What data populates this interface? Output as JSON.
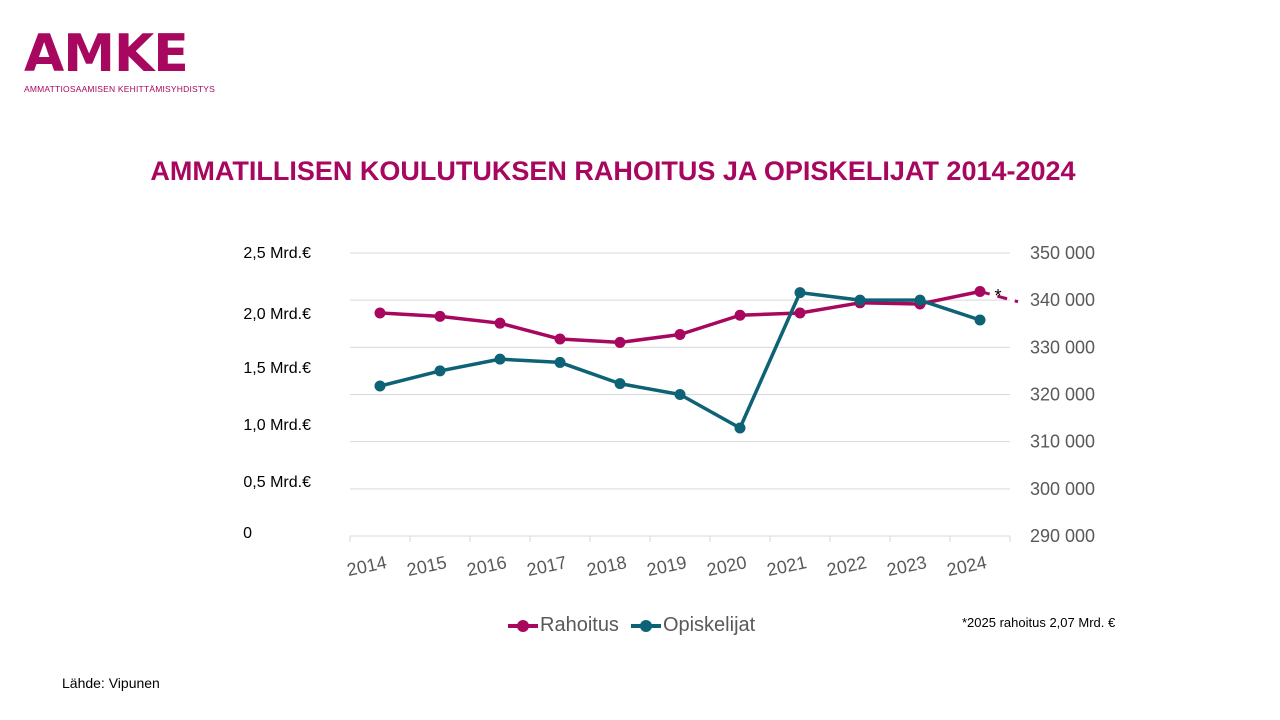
{
  "logo": {
    "word": "AMKE",
    "subtitle": "AMMATTIOSAAMISEN KEHITTÄMISYHDISTYS"
  },
  "title": "AMMATILLISEN KOULUTUKSEN RAHOITUS JA OPISKELIJAT 2014-2024",
  "footnote": "*2025 rahoitus 2,07 Mrd. €",
  "source": "Lähde: Vipunen",
  "colors": {
    "rahoitus": "#a8075f",
    "opiskelijat": "#0d6276",
    "grid": "#d9d9d9",
    "text": "#595959"
  },
  "chart_data": {
    "type": "line",
    "title": "AMMATILLISEN KOULUTUKSEN RAHOITUS JA OPISKELIJAT 2014-2024",
    "x": [
      "2014",
      "2015",
      "2016",
      "2017",
      "2018",
      "2019",
      "2020",
      "2021",
      "2022",
      "2023",
      "2024"
    ],
    "y_left": {
      "ticks": [
        0,
        0.5,
        1.0,
        1.5,
        2.0,
        2.5
      ],
      "tick_labels": [
        "0",
        "0,5 Mrd.€",
        "1,0 Mrd.€",
        "1,5 Mrd.€",
        "2,0 Mrd.€",
        "2,5 Mrd.€"
      ],
      "ylim": [
        0,
        2.5
      ]
    },
    "y_right": {
      "ticks": [
        290000,
        300000,
        310000,
        320000,
        330000,
        340000,
        350000
      ],
      "tick_labels": [
        "290 000",
        "300 000",
        "310 000",
        "320 000",
        "330 000",
        "340 000",
        "350 000"
      ],
      "ylim": [
        290000,
        350000
      ]
    },
    "series": [
      {
        "name": "Rahoitus",
        "axis": "left",
        "values": [
          1.97,
          1.94,
          1.88,
          1.74,
          1.71,
          1.78,
          1.95,
          1.97,
          2.06,
          2.05,
          2.16
        ],
        "projection": {
          "x": "2025",
          "value": 2.07,
          "label": "*",
          "style": "dashed"
        }
      },
      {
        "name": "Opiskelijat",
        "axis": "right",
        "values": [
          321800,
          325000,
          327500,
          326800,
          322300,
          320000,
          312900,
          341600,
          340000,
          340000,
          335800
        ]
      }
    ],
    "grid": true,
    "legend": "bottom"
  }
}
